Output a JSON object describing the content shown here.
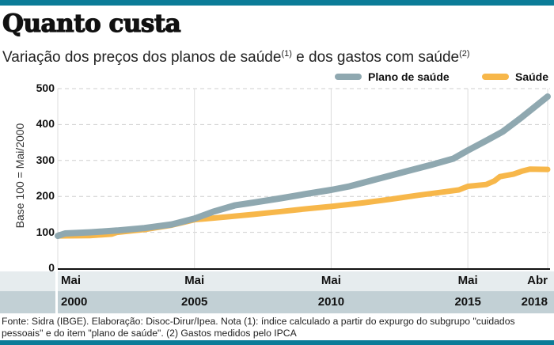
{
  "header": {
    "title": "Quanto custa",
    "subtitle_part1": "Variação dos preços dos planos de saúde",
    "subtitle_note1": "(1)",
    "subtitle_part2": " e dos gastos com saúde",
    "subtitle_note2": "(2)"
  },
  "source": "Fonte: Sidra (IBGE). Elaboração: Disoc-Dirur/Ipea. Nota (1): índice calculado a partir do expurgo do subgrupo \"cuidados pessoais\" e do item \"plano de saúde\". (2) Gastos medidos pelo IPCA",
  "colors": {
    "brand_bar": "#0b7c98",
    "plano": "#8fa8b0",
    "saude": "#f7b74a"
  },
  "chart_data": {
    "type": "line",
    "title": "Quanto custa",
    "subtitle": "Variação dos preços dos planos de saúde (1) e dos gastos com saúde (2)",
    "xlabel": "",
    "ylabel": "Base 100 = Mai/2000",
    "ylim": [
      0,
      500
    ],
    "yticks": [
      0,
      100,
      200,
      300,
      400,
      500
    ],
    "grid": true,
    "legend_position": "top-right",
    "x_ticks": [
      {
        "month": "Mai",
        "year": "2000",
        "x": 2000.33
      },
      {
        "month": "Mai",
        "year": "2005",
        "x": 2005.33
      },
      {
        "month": "Mai",
        "year": "2010",
        "x": 2010.33
      },
      {
        "month": "Mai",
        "year": "2015",
        "x": 2015.33
      },
      {
        "month": "Abr",
        "year": "2018",
        "x": 2018.25
      }
    ],
    "xlim": [
      2000.33,
      2018.25
    ],
    "series": [
      {
        "name": "Plano de saúde",
        "color": "#8fa8b0",
        "x": [
          2000.33,
          2000.6,
          2001.5,
          2002.5,
          2003.5,
          2004.5,
          2005.33,
          2006.0,
          2006.8,
          2007.5,
          2008.5,
          2009.5,
          2010.33,
          2011.0,
          2012.0,
          2013.0,
          2014.0,
          2014.8,
          2015.33,
          2016.0,
          2016.6,
          2017.3,
          2018.25
        ],
        "values": [
          90,
          97,
          100,
          105,
          112,
          122,
          138,
          157,
          175,
          183,
          195,
          208,
          218,
          228,
          248,
          268,
          288,
          305,
          328,
          355,
          380,
          420,
          478
        ]
      },
      {
        "name": "Saúde",
        "color": "#f7b74a",
        "x": [
          2000.33,
          2001.5,
          2002.3,
          2002.5,
          2003.5,
          2004.5,
          2005.33,
          2006.5,
          2007.5,
          2008.5,
          2009.5,
          2010.33,
          2011.5,
          2012.5,
          2013.5,
          2014.5,
          2015.0,
          2015.33,
          2016.0,
          2016.3,
          2016.5,
          2017.0,
          2017.3,
          2017.6,
          2018.25
        ],
        "values": [
          90,
          91,
          95,
          100,
          108,
          120,
          135,
          143,
          150,
          158,
          166,
          172,
          182,
          192,
          203,
          213,
          218,
          228,
          233,
          243,
          255,
          262,
          270,
          276,
          275
        ]
      }
    ]
  }
}
